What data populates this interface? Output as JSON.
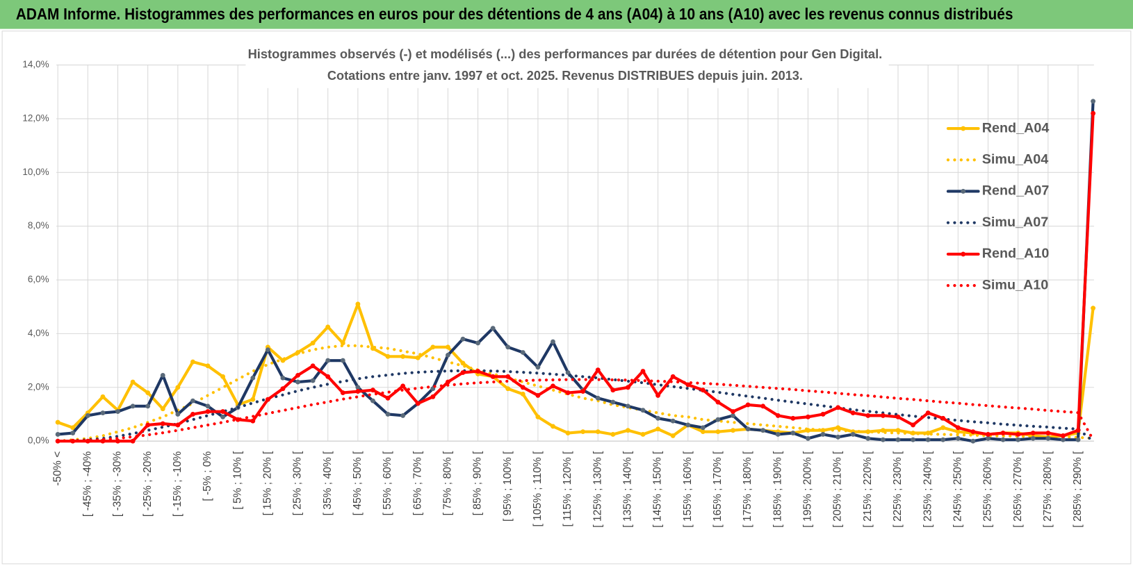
{
  "header": "ADAM Informe. Histogrammes des performances en euros pour des détentions de 4 ans (A04) à 10 ans (A10) avec les revenus connus distribués",
  "chart_data": {
    "type": "line",
    "title": "Histogrammes observés (-) et modélisés (...) des performances par durées de détention pour Gen Digital.",
    "subtitle": "Cotations entre janv. 1997 et oct. 2025.  Revenus DISTRIBUES depuis juin. 2013.",
    "categories": [
      "-50% <",
      null,
      "[ -45% ; -40%",
      null,
      "[ -35% ; -30%",
      null,
      "[ -25% ; -20%",
      null,
      "[ -15% ; -10%",
      null,
      "[ -5% ; 0%",
      null,
      "[ 5% ; 10% [",
      null,
      "[ 15% ; 20% [",
      null,
      "[ 25% ; 30% [",
      null,
      "[ 35% ; 40% [",
      null,
      "[ 45% ; 50% [",
      null,
      "[ 55% ; 60% [",
      null,
      "[ 65% ; 70% [",
      null,
      "[ 75% ; 80% [",
      null,
      "[ 85% ; 90% [",
      null,
      "[ 95% ; 100% [",
      null,
      "[ 105% ; 110% [",
      null,
      "[ 115% ; 120% [",
      null,
      "[ 125% ; 130% [",
      null,
      "[ 135% ; 140% [",
      null,
      "[ 145% ; 150% [",
      null,
      "[ 155% ; 160% [",
      null,
      "[ 165% ; 170% [",
      null,
      "[ 175% ; 180% [",
      null,
      "[ 185% ; 190% [",
      null,
      "[ 195% ; 200% [",
      null,
      "[ 205% ; 210% [",
      null,
      "[ 215% ; 220% [",
      null,
      "[ 225% ; 230% [",
      null,
      "[ 235% ; 240% [",
      null,
      "[ 245% ; 250% [",
      null,
      "[ 255% ; 260% [",
      null,
      "[ 265% ; 270% [",
      null,
      "[ 275% ; 280% [",
      null,
      "[ 285% ; 290% [",
      null
    ],
    "ylim": [
      0,
      14
    ],
    "yticks": [
      {
        "value": 0,
        "label": "0,0%"
      },
      {
        "value": 2,
        "label": "2,0%"
      },
      {
        "value": 4,
        "label": "4,0%"
      },
      {
        "value": 6,
        "label": "6,0%"
      },
      {
        "value": 8,
        "label": "8,0%"
      },
      {
        "value": 10,
        "label": "10,0%"
      },
      {
        "value": 12,
        "label": "12,0%"
      },
      {
        "value": 14,
        "label": "14,0%"
      }
    ],
    "grid": true,
    "legend": "right",
    "series": [
      {
        "name": "Rend_A04",
        "color": "#ffc000",
        "style": "solid",
        "markers": true,
        "values": [
          0.7,
          0.5,
          1.05,
          1.65,
          1.15,
          2.2,
          1.8,
          1.2,
          2.0,
          2.95,
          2.8,
          2.4,
          1.35,
          1.55,
          3.5,
          3.0,
          3.3,
          3.65,
          4.25,
          3.65,
          5.1,
          3.45,
          3.15,
          3.15,
          3.1,
          3.5,
          3.5,
          2.9,
          2.5,
          2.4,
          1.95,
          1.75,
          0.9,
          0.55,
          0.3,
          0.35,
          0.35,
          0.25,
          0.4,
          0.25,
          0.45,
          0.2,
          0.6,
          0.35,
          0.35,
          0.4,
          0.45,
          0.4,
          0.35,
          0.3,
          0.4,
          0.4,
          0.5,
          0.35,
          0.35,
          0.4,
          0.4,
          0.3,
          0.3,
          0.5,
          0.35,
          0.3,
          0.25,
          0.3,
          0.3,
          0.2,
          0.15,
          0.2,
          0.3,
          4.95
        ]
      },
      {
        "name": "Simu_A04",
        "color": "#ffc000",
        "style": "dotted",
        "markers": false,
        "values": [
          0.0,
          0.05,
          0.1,
          0.2,
          0.35,
          0.5,
          0.7,
          0.9,
          1.15,
          1.4,
          1.7,
          2.0,
          2.3,
          2.6,
          2.85,
          3.05,
          3.25,
          3.4,
          3.5,
          3.55,
          3.55,
          3.5,
          3.45,
          3.35,
          3.25,
          3.1,
          2.95,
          2.8,
          2.65,
          2.5,
          2.35,
          2.2,
          2.05,
          1.9,
          1.75,
          1.6,
          1.5,
          1.35,
          1.25,
          1.15,
          1.05,
          0.95,
          0.9,
          0.8,
          0.75,
          0.7,
          0.65,
          0.6,
          0.55,
          0.5,
          0.45,
          0.42,
          0.4,
          0.37,
          0.35,
          0.32,
          0.3,
          0.28,
          0.26,
          0.25,
          0.23,
          0.22,
          0.2,
          0.19,
          0.18,
          0.17,
          0.16,
          0.15,
          0.14,
          0.1
        ]
      },
      {
        "name": "Rend_A07",
        "color": "#1f3864",
        "style": "solid",
        "markers": true,
        "values": [
          0.25,
          0.3,
          0.95,
          1.05,
          1.1,
          1.3,
          1.3,
          2.45,
          1.0,
          1.5,
          1.3,
          0.9,
          1.25,
          2.35,
          3.4,
          2.35,
          2.2,
          2.25,
          3.0,
          3.0,
          2.0,
          1.5,
          1.0,
          0.95,
          1.4,
          1.95,
          3.2,
          3.8,
          3.65,
          4.2,
          3.5,
          3.3,
          2.75,
          3.7,
          2.55,
          1.9,
          1.6,
          1.45,
          1.3,
          1.15,
          0.85,
          0.75,
          0.6,
          0.5,
          0.8,
          0.95,
          0.45,
          0.4,
          0.25,
          0.3,
          0.1,
          0.25,
          0.15,
          0.25,
          0.1,
          0.05,
          0.05,
          0.05,
          0.05,
          0.05,
          0.1,
          0.0,
          0.1,
          0.05,
          0.05,
          0.1,
          0.1,
          0.05,
          0.05,
          12.65
        ]
      },
      {
        "name": "Simu_A07",
        "color": "#1f3864",
        "style": "dotted",
        "markers": false,
        "values": [
          0,
          0.02,
          0.05,
          0.1,
          0.18,
          0.28,
          0.4,
          0.52,
          0.65,
          0.8,
          0.95,
          1.1,
          1.25,
          1.42,
          1.58,
          1.72,
          1.87,
          2.0,
          2.12,
          2.22,
          2.32,
          2.4,
          2.46,
          2.52,
          2.56,
          2.59,
          2.61,
          2.62,
          2.62,
          2.61,
          2.59,
          2.56,
          2.53,
          2.49,
          2.45,
          2.4,
          2.35,
          2.29,
          2.23,
          2.17,
          2.1,
          2.03,
          1.96,
          1.89,
          1.82,
          1.74,
          1.67,
          1.6,
          1.52,
          1.45,
          1.38,
          1.31,
          1.24,
          1.17,
          1.11,
          1.05,
          0.99,
          0.93,
          0.88,
          0.82,
          0.77,
          0.72,
          0.68,
          0.63,
          0.59,
          0.55,
          0.52,
          0.48,
          0.45,
          0.0
        ]
      },
      {
        "name": "Rend_A10",
        "color": "#ff0000",
        "style": "solid",
        "markers": true,
        "values": [
          0,
          0,
          0,
          0,
          0,
          0,
          0.6,
          0.65,
          0.6,
          1.0,
          1.1,
          1.1,
          0.8,
          0.75,
          1.55,
          1.95,
          2.45,
          2.8,
          2.4,
          1.8,
          1.85,
          1.9,
          1.6,
          2.05,
          1.4,
          1.65,
          2.2,
          2.55,
          2.6,
          2.4,
          2.4,
          2.0,
          1.7,
          2.05,
          1.8,
          1.85,
          2.65,
          1.9,
          2.0,
          2.6,
          1.7,
          2.4,
          2.1,
          1.9,
          1.45,
          1.1,
          1.35,
          1.3,
          0.95,
          0.85,
          0.9,
          1.0,
          1.25,
          1.05,
          0.95,
          0.95,
          0.9,
          0.6,
          1.05,
          0.85,
          0.5,
          0.35,
          0.25,
          0.3,
          0.25,
          0.3,
          0.3,
          0.2,
          0.4,
          12.2
        ]
      },
      {
        "name": "Simu_A10",
        "color": "#ff0000",
        "style": "dotted",
        "markers": false,
        "values": [
          0,
          0.01,
          0.03,
          0.06,
          0.1,
          0.16,
          0.23,
          0.31,
          0.4,
          0.5,
          0.6,
          0.7,
          0.81,
          0.92,
          1.03,
          1.14,
          1.25,
          1.36,
          1.46,
          1.56,
          1.65,
          1.74,
          1.82,
          1.9,
          1.97,
          2.03,
          2.08,
          2.13,
          2.17,
          2.2,
          2.23,
          2.25,
          2.27,
          2.28,
          2.29,
          2.29,
          2.29,
          2.28,
          2.27,
          2.25,
          2.23,
          2.21,
          2.18,
          2.15,
          2.12,
          2.08,
          2.04,
          2.0,
          1.96,
          1.92,
          1.87,
          1.83,
          1.78,
          1.73,
          1.69,
          1.64,
          1.59,
          1.55,
          1.5,
          1.45,
          1.41,
          1.36,
          1.32,
          1.27,
          1.23,
          1.19,
          1.14,
          1.1,
          1.06,
          0.05
        ]
      }
    ]
  }
}
